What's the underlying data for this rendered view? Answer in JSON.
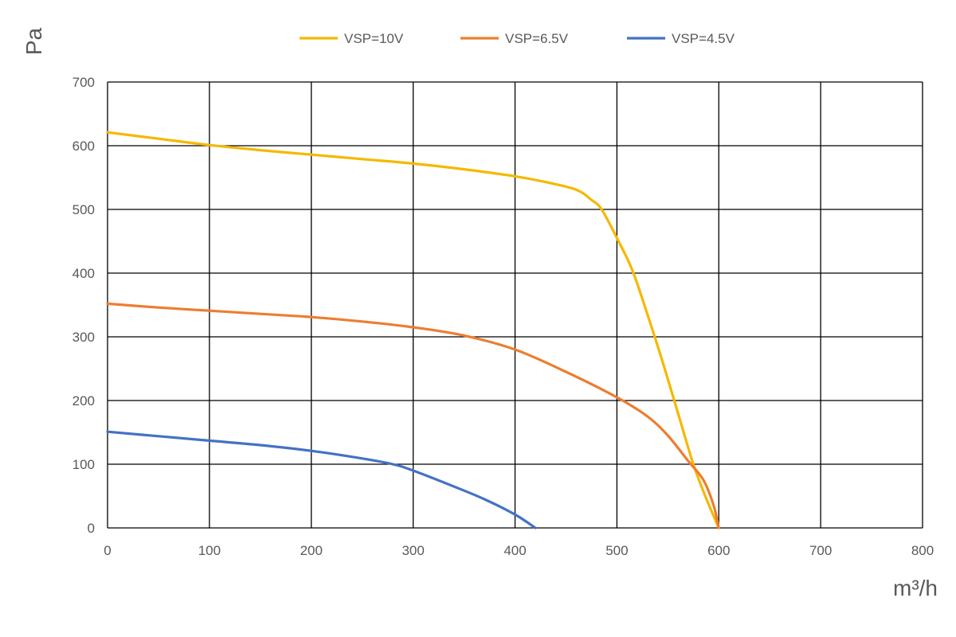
{
  "chart_data": {
    "type": "line",
    "title": "",
    "xlabel": "m³/h",
    "ylabel": "Pa",
    "xlim": [
      0,
      800
    ],
    "ylim": [
      0,
      700
    ],
    "xticks": [
      0,
      100,
      200,
      300,
      400,
      500,
      600,
      700,
      800
    ],
    "yticks": [
      0,
      100,
      200,
      300,
      400,
      500,
      600,
      700
    ],
    "grid": true,
    "legend": "top-center",
    "series": [
      {
        "name": "VSP=10V",
        "color": "#f5b800",
        "points": [
          [
            0,
            621
          ],
          [
            50,
            611
          ],
          [
            100,
            601
          ],
          [
            150,
            593
          ],
          [
            200,
            586
          ],
          [
            250,
            579
          ],
          [
            300,
            572
          ],
          [
            350,
            563
          ],
          [
            400,
            552
          ],
          [
            430,
            543
          ],
          [
            460,
            531
          ],
          [
            475,
            515
          ],
          [
            485,
            500
          ],
          [
            500,
            455
          ],
          [
            515,
            405
          ],
          [
            530,
            335
          ],
          [
            545,
            260
          ],
          [
            560,
            180
          ],
          [
            575,
            100
          ],
          [
            588,
            45
          ],
          [
            600,
            0
          ]
        ]
      },
      {
        "name": "VSP=6.5V",
        "color": "#ed7d31",
        "points": [
          [
            0,
            352
          ],
          [
            50,
            346
          ],
          [
            100,
            341
          ],
          [
            150,
            336
          ],
          [
            200,
            331
          ],
          [
            250,
            324
          ],
          [
            300,
            315
          ],
          [
            350,
            302
          ],
          [
            400,
            280
          ],
          [
            450,
            245
          ],
          [
            500,
            205
          ],
          [
            530,
            175
          ],
          [
            550,
            145
          ],
          [
            570,
            105
          ],
          [
            585,
            75
          ],
          [
            595,
            35
          ],
          [
            600,
            0
          ]
        ]
      },
      {
        "name": "VSP=4.5V",
        "color": "#4472c4",
        "points": [
          [
            0,
            151
          ],
          [
            50,
            144
          ],
          [
            100,
            137
          ],
          [
            150,
            130
          ],
          [
            200,
            121
          ],
          [
            250,
            109
          ],
          [
            280,
            100
          ],
          [
            300,
            90
          ],
          [
            340,
            65
          ],
          [
            370,
            45
          ],
          [
            400,
            21
          ],
          [
            420,
            0
          ]
        ]
      }
    ]
  }
}
